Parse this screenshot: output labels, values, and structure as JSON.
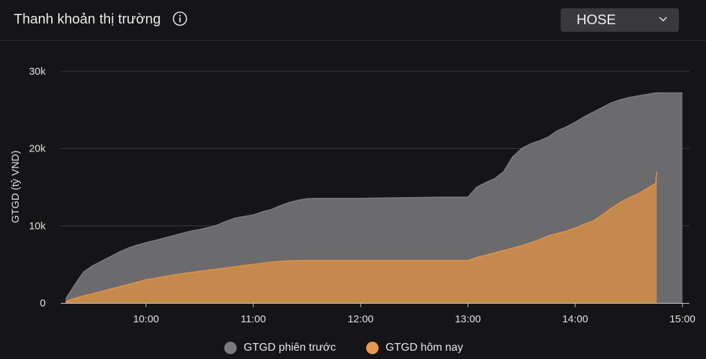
{
  "header": {
    "title": "Thanh khoản thị trường",
    "info_icon": "info-icon",
    "market": "HOSE",
    "dropdown_icon": "chevron-down-icon"
  },
  "colors": {
    "previous": "#6b6b6e",
    "today": "#e0924a",
    "today_fill": "#c98a4c",
    "grid": "#3a3a3e",
    "axis_text": "#e0e0e0"
  },
  "chart_data": {
    "type": "area",
    "title": "Thanh khoản thị trường",
    "ylabel": "GTGD (tỷ VND)",
    "xlabel": "",
    "ylim": [
      0,
      30000
    ],
    "y_ticks": [
      0,
      10000,
      20000,
      30000
    ],
    "y_tick_labels": [
      "0",
      "10k",
      "20k",
      "30k"
    ],
    "x_range_hours": [
      9.25,
      15.0833
    ],
    "x_ticks": [
      10,
      11,
      12,
      13,
      14,
      15
    ],
    "x_tick_labels": [
      "10:00",
      "11:00",
      "12:00",
      "13:00",
      "14:00",
      "15:00"
    ],
    "legend_position": "bottom-center",
    "series": [
      {
        "name": "GTGD phiên trước",
        "color": "#6b6b6e",
        "x": [
          9.25,
          9.333,
          9.417,
          9.5,
          9.583,
          9.667,
          9.75,
          9.833,
          9.917,
          10.0,
          10.083,
          10.167,
          10.25,
          10.333,
          10.417,
          10.5,
          10.583,
          10.667,
          10.75,
          10.833,
          10.917,
          11.0,
          11.083,
          11.167,
          11.25,
          11.333,
          11.417,
          11.5,
          11.583,
          11.667,
          11.75,
          11.833,
          11.917,
          12.0,
          12.25,
          12.5,
          12.75,
          13.0,
          13.083,
          13.167,
          13.25,
          13.333,
          13.417,
          13.5,
          13.583,
          13.667,
          13.75,
          13.833,
          13.917,
          14.0,
          14.083,
          14.167,
          14.25,
          14.333,
          14.417,
          14.5,
          14.583,
          14.667,
          14.75,
          14.833,
          14.917,
          15.0
        ],
        "values": [
          500,
          2300,
          4000,
          4800,
          5400,
          6000,
          6600,
          7100,
          7500,
          7800,
          8100,
          8400,
          8700,
          9000,
          9300,
          9500,
          9800,
          10100,
          10600,
          11000,
          11200,
          11400,
          11800,
          12100,
          12600,
          13000,
          13300,
          13500,
          13550,
          13550,
          13550,
          13550,
          13550,
          13550,
          13600,
          13650,
          13700,
          13700,
          15000,
          15600,
          16100,
          17000,
          18900,
          20000,
          20600,
          21000,
          21500,
          22300,
          22800,
          23400,
          24100,
          24700,
          25300,
          25900,
          26300,
          26600,
          26800,
          27000,
          27200,
          27200,
          27200,
          27200
        ]
      },
      {
        "name": "GTGD hôm nay",
        "color": "#e0924a",
        "x": [
          9.25,
          9.333,
          9.417,
          9.5,
          9.583,
          9.667,
          9.75,
          9.833,
          9.917,
          10.0,
          10.083,
          10.167,
          10.25,
          10.333,
          10.417,
          10.5,
          10.583,
          10.667,
          10.75,
          10.833,
          10.917,
          11.0,
          11.083,
          11.167,
          11.25,
          11.333,
          11.417,
          11.5,
          11.75,
          12.0,
          12.25,
          12.5,
          12.75,
          13.0,
          13.083,
          13.167,
          13.25,
          13.333,
          13.417,
          13.5,
          13.583,
          13.667,
          13.75,
          13.833,
          13.917,
          14.0,
          14.083,
          14.167,
          14.25,
          14.333,
          14.417,
          14.5,
          14.583,
          14.667,
          14.75,
          14.76
        ],
        "values": [
          200,
          600,
          900,
          1200,
          1500,
          1800,
          2100,
          2400,
          2700,
          3000,
          3200,
          3400,
          3600,
          3800,
          3950,
          4100,
          4250,
          4400,
          4550,
          4700,
          4850,
          5000,
          5150,
          5300,
          5400,
          5450,
          5500,
          5500,
          5500,
          5500,
          5500,
          5500,
          5500,
          5500,
          5900,
          6200,
          6500,
          6800,
          7100,
          7400,
          7800,
          8200,
          8700,
          9000,
          9300,
          9700,
          10200,
          10600,
          11400,
          12200,
          13000,
          13600,
          14100,
          14800,
          15500,
          17000
        ]
      }
    ]
  }
}
